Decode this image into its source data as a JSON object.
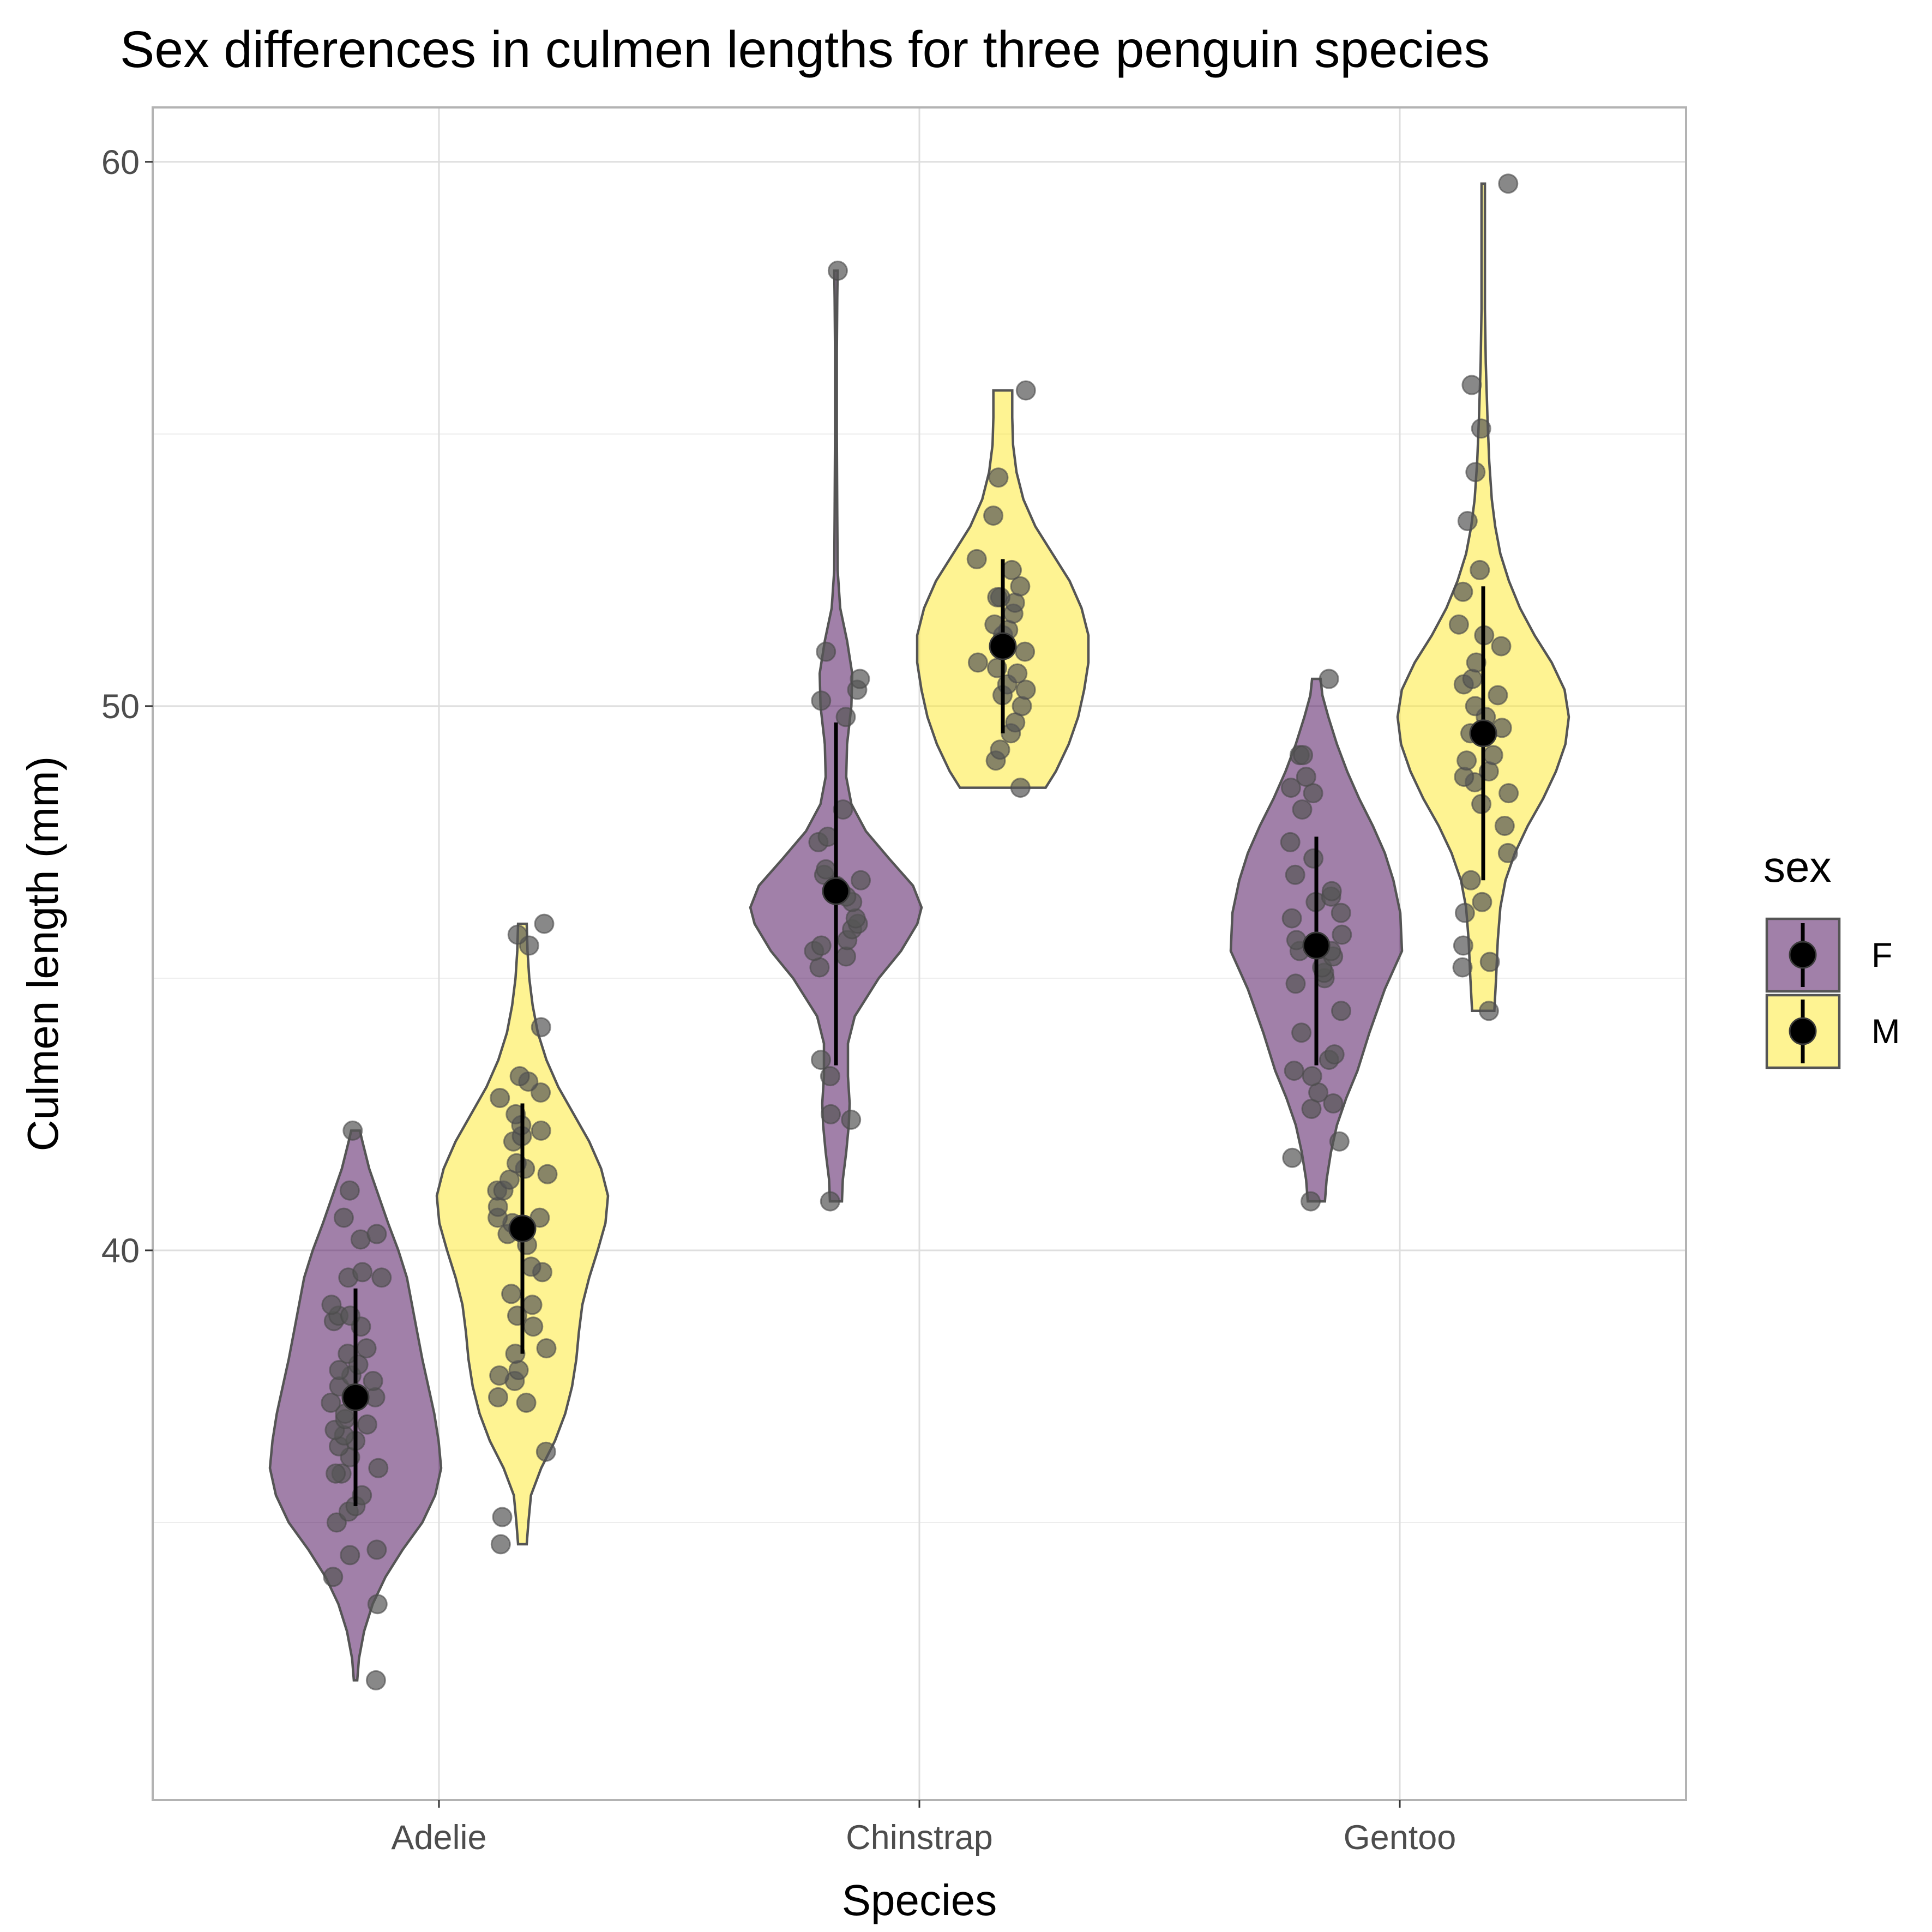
{
  "chart_data": {
    "type": "violin",
    "title": "Sex differences in culmen lengths for three penguin species",
    "xlabel": "Species",
    "ylabel": "Culmen length (mm)",
    "categories": [
      "Adelie",
      "Chinstrap",
      "Gentoo"
    ],
    "ylim": [
      29.9,
      61.0
    ],
    "yticks": [
      40,
      50,
      60
    ],
    "grid": true,
    "legend": {
      "title": "sex",
      "position": "right",
      "entries": [
        {
          "label": "F",
          "color": "#440154"
        },
        {
          "label": "M",
          "color": "#fde725"
        }
      ]
    },
    "colors": {
      "F": "#440154",
      "M": "#fde725",
      "violin_alpha": 0.5,
      "outline": "#555555",
      "points": "#555555"
    },
    "summary": {
      "F": [
        {
          "species": "Adelie",
          "mean": 37.3,
          "sd_low": 35.3,
          "sd_high": 39.3
        },
        {
          "species": "Chinstrap",
          "mean": 46.6,
          "sd_low": 43.4,
          "sd_high": 49.7
        },
        {
          "species": "Gentoo",
          "mean": 45.6,
          "sd_low": 43.4,
          "sd_high": 47.6
        }
      ],
      "M": [
        {
          "species": "Adelie",
          "mean": 40.4,
          "sd_low": 38.1,
          "sd_high": 42.7
        },
        {
          "species": "Chinstrap",
          "mean": 51.1,
          "sd_low": 49.5,
          "sd_high": 52.7
        },
        {
          "species": "Gentoo",
          "mean": 49.5,
          "sd_low": 46.8,
          "sd_high": 52.2
        }
      ]
    },
    "violins": {
      "F": [
        {
          "species": "Adelie",
          "min": 32.1,
          "max": 42.2,
          "profile": [
            [
              32.1,
              0.02
            ],
            [
              32.5,
              0.04
            ],
            [
              33.0,
              0.1
            ],
            [
              33.5,
              0.2
            ],
            [
              34.0,
              0.35
            ],
            [
              34.5,
              0.55
            ],
            [
              35.0,
              0.78
            ],
            [
              35.5,
              0.93
            ],
            [
              36.0,
              1.0
            ],
            [
              36.5,
              0.97
            ],
            [
              37.0,
              0.92
            ],
            [
              37.5,
              0.85
            ],
            [
              38.0,
              0.78
            ],
            [
              38.5,
              0.72
            ],
            [
              39.0,
              0.66
            ],
            [
              39.5,
              0.6
            ],
            [
              40.0,
              0.5
            ],
            [
              40.5,
              0.38
            ],
            [
              41.0,
              0.27
            ],
            [
              41.5,
              0.16
            ],
            [
              42.0,
              0.08
            ],
            [
              42.2,
              0.05
            ]
          ]
        },
        {
          "species": "Chinstrap",
          "min": 40.9,
          "max": 58.0,
          "profile": [
            [
              40.9,
              0.07
            ],
            [
              41.3,
              0.08
            ],
            [
              41.8,
              0.12
            ],
            [
              42.3,
              0.15
            ],
            [
              42.7,
              0.16
            ],
            [
              43.2,
              0.14
            ],
            [
              43.8,
              0.14
            ],
            [
              44.3,
              0.22
            ],
            [
              45.0,
              0.5
            ],
            [
              45.5,
              0.76
            ],
            [
              46.0,
              0.95
            ],
            [
              46.3,
              1.0
            ],
            [
              46.7,
              0.9
            ],
            [
              47.2,
              0.62
            ],
            [
              47.7,
              0.35
            ],
            [
              48.2,
              0.18
            ],
            [
              48.7,
              0.12
            ],
            [
              49.3,
              0.13
            ],
            [
              50.0,
              0.18
            ],
            [
              50.6,
              0.19
            ],
            [
              51.2,
              0.13
            ],
            [
              51.8,
              0.05
            ],
            [
              52.5,
              0.02
            ],
            [
              53.5,
              0.015
            ],
            [
              55.0,
              0.01
            ],
            [
              56.5,
              0.01
            ],
            [
              57.5,
              0.015
            ],
            [
              58.0,
              0.02
            ]
          ]
        },
        {
          "species": "Gentoo",
          "min": 40.9,
          "max": 50.5,
          "profile": [
            [
              40.9,
              0.1
            ],
            [
              41.3,
              0.12
            ],
            [
              41.8,
              0.17
            ],
            [
              42.3,
              0.24
            ],
            [
              42.8,
              0.35
            ],
            [
              43.3,
              0.48
            ],
            [
              44.0,
              0.62
            ],
            [
              44.8,
              0.8
            ],
            [
              45.5,
              1.0
            ],
            [
              46.2,
              0.98
            ],
            [
              46.8,
              0.9
            ],
            [
              47.3,
              0.8
            ],
            [
              47.8,
              0.66
            ],
            [
              48.3,
              0.5
            ],
            [
              48.8,
              0.36
            ],
            [
              49.3,
              0.24
            ],
            [
              49.8,
              0.14
            ],
            [
              50.2,
              0.07
            ],
            [
              50.5,
              0.05
            ]
          ]
        }
      ],
      "M": [
        {
          "species": "Adelie",
          "min": 34.6,
          "max": 46.0,
          "profile": [
            [
              34.6,
              0.05
            ],
            [
              35.0,
              0.07
            ],
            [
              35.5,
              0.1
            ],
            [
              36.0,
              0.22
            ],
            [
              36.5,
              0.38
            ],
            [
              37.0,
              0.5
            ],
            [
              37.5,
              0.58
            ],
            [
              38.0,
              0.63
            ],
            [
              38.5,
              0.66
            ],
            [
              39.0,
              0.7
            ],
            [
              39.5,
              0.78
            ],
            [
              40.0,
              0.88
            ],
            [
              40.5,
              0.97
            ],
            [
              41.0,
              1.0
            ],
            [
              41.5,
              0.92
            ],
            [
              42.0,
              0.78
            ],
            [
              42.5,
              0.6
            ],
            [
              43.0,
              0.42
            ],
            [
              43.5,
              0.28
            ],
            [
              44.0,
              0.18
            ],
            [
              44.5,
              0.12
            ],
            [
              45.0,
              0.08
            ],
            [
              45.5,
              0.06
            ],
            [
              46.0,
              0.05
            ]
          ]
        },
        {
          "species": "Chinstrap",
          "min": 48.5,
          "max": 55.8,
          "profile": [
            [
              48.5,
              0.5
            ],
            [
              48.8,
              0.62
            ],
            [
              49.3,
              0.77
            ],
            [
              49.8,
              0.88
            ],
            [
              50.3,
              0.95
            ],
            [
              50.8,
              1.0
            ],
            [
              51.3,
              1.0
            ],
            [
              51.8,
              0.92
            ],
            [
              52.3,
              0.78
            ],
            [
              52.8,
              0.58
            ],
            [
              53.3,
              0.38
            ],
            [
              53.8,
              0.24
            ],
            [
              54.3,
              0.16
            ],
            [
              54.8,
              0.12
            ],
            [
              55.3,
              0.11
            ],
            [
              55.8,
              0.11
            ]
          ]
        },
        {
          "species": "Gentoo",
          "min": 44.4,
          "max": 59.6,
          "profile": [
            [
              44.4,
              0.13
            ],
            [
              45.0,
              0.15
            ],
            [
              45.7,
              0.17
            ],
            [
              46.3,
              0.2
            ],
            [
              46.8,
              0.26
            ],
            [
              47.3,
              0.37
            ],
            [
              47.8,
              0.52
            ],
            [
              48.3,
              0.7
            ],
            [
              48.8,
              0.85
            ],
            [
              49.3,
              0.96
            ],
            [
              49.8,
              1.0
            ],
            [
              50.3,
              0.95
            ],
            [
              50.8,
              0.8
            ],
            [
              51.3,
              0.6
            ],
            [
              51.8,
              0.43
            ],
            [
              52.3,
              0.3
            ],
            [
              52.8,
              0.2
            ],
            [
              53.3,
              0.14
            ],
            [
              53.8,
              0.1
            ],
            [
              54.5,
              0.07
            ],
            [
              55.3,
              0.05
            ],
            [
              56.3,
              0.03
            ],
            [
              57.3,
              0.02
            ],
            [
              58.5,
              0.02
            ],
            [
              59.6,
              0.02
            ]
          ]
        }
      ]
    },
    "points": {
      "F": [
        {
          "species": "Adelie",
          "values": [
            32.1,
            33.5,
            34.0,
            34.4,
            34.5,
            35.0,
            35.2,
            35.3,
            35.5,
            35.9,
            35.9,
            36.0,
            36.2,
            36.4,
            36.5,
            36.6,
            36.7,
            36.8,
            36.9,
            37.0,
            37.2,
            37.3,
            37.5,
            37.6,
            37.7,
            37.8,
            37.9,
            38.1,
            38.2,
            38.6,
            38.7,
            38.8,
            38.8,
            39.0,
            39.5,
            39.5,
            39.6,
            40.2,
            40.3,
            40.6,
            41.1,
            42.2
          ]
        },
        {
          "species": "Chinstrap",
          "values": [
            40.9,
            42.4,
            42.5,
            43.2,
            43.5,
            45.2,
            45.4,
            45.5,
            45.6,
            45.7,
            45.9,
            46.0,
            46.1,
            46.4,
            46.5,
            46.6,
            46.7,
            46.8,
            46.9,
            47.0,
            47.5,
            47.6,
            48.1,
            49.8,
            50.1,
            50.3,
            50.5,
            51.0,
            58.0
          ]
        },
        {
          "species": "Gentoo",
          "values": [
            40.9,
            41.7,
            42.0,
            42.6,
            42.7,
            42.9,
            43.2,
            43.3,
            43.5,
            43.6,
            44.0,
            44.4,
            44.9,
            45.0,
            45.1,
            45.2,
            45.4,
            45.5,
            45.5,
            45.7,
            45.8,
            46.1,
            46.2,
            46.4,
            46.5,
            46.6,
            46.9,
            47.2,
            47.5,
            48.1,
            48.4,
            48.5,
            48.7,
            49.1,
            49.1,
            50.5
          ]
        }
      ],
      "M": [
        {
          "species": "Adelie",
          "values": [
            34.6,
            35.1,
            36.3,
            37.2,
            37.3,
            37.6,
            37.7,
            37.8,
            38.1,
            38.2,
            38.6,
            38.8,
            39.0,
            39.2,
            39.6,
            39.7,
            40.1,
            40.3,
            40.5,
            40.6,
            40.6,
            40.8,
            41.1,
            41.1,
            41.3,
            41.4,
            41.5,
            41.6,
            42.0,
            42.1,
            42.2,
            42.3,
            42.5,
            42.8,
            42.9,
            43.1,
            43.2,
            44.1,
            45.6,
            45.8,
            46.0
          ]
        },
        {
          "species": "Chinstrap",
          "values": [
            48.5,
            49.0,
            49.2,
            49.5,
            49.7,
            50.0,
            50.2,
            50.3,
            50.4,
            50.6,
            50.7,
            50.8,
            51.0,
            51.3,
            51.4,
            51.5,
            51.7,
            51.9,
            52.0,
            52.0,
            52.2,
            52.5,
            52.7,
            53.5,
            54.2,
            55.8
          ]
        },
        {
          "species": "Gentoo",
          "values": [
            44.4,
            45.2,
            45.3,
            45.6,
            46.2,
            46.4,
            46.8,
            47.3,
            47.8,
            48.2,
            48.4,
            48.6,
            48.7,
            48.8,
            49.0,
            49.1,
            49.5,
            49.6,
            49.8,
            50.0,
            50.2,
            50.4,
            50.5,
            50.8,
            51.1,
            51.3,
            51.5,
            52.1,
            52.5,
            53.4,
            54.3,
            55.1,
            55.9,
            59.6
          ]
        }
      ]
    }
  }
}
